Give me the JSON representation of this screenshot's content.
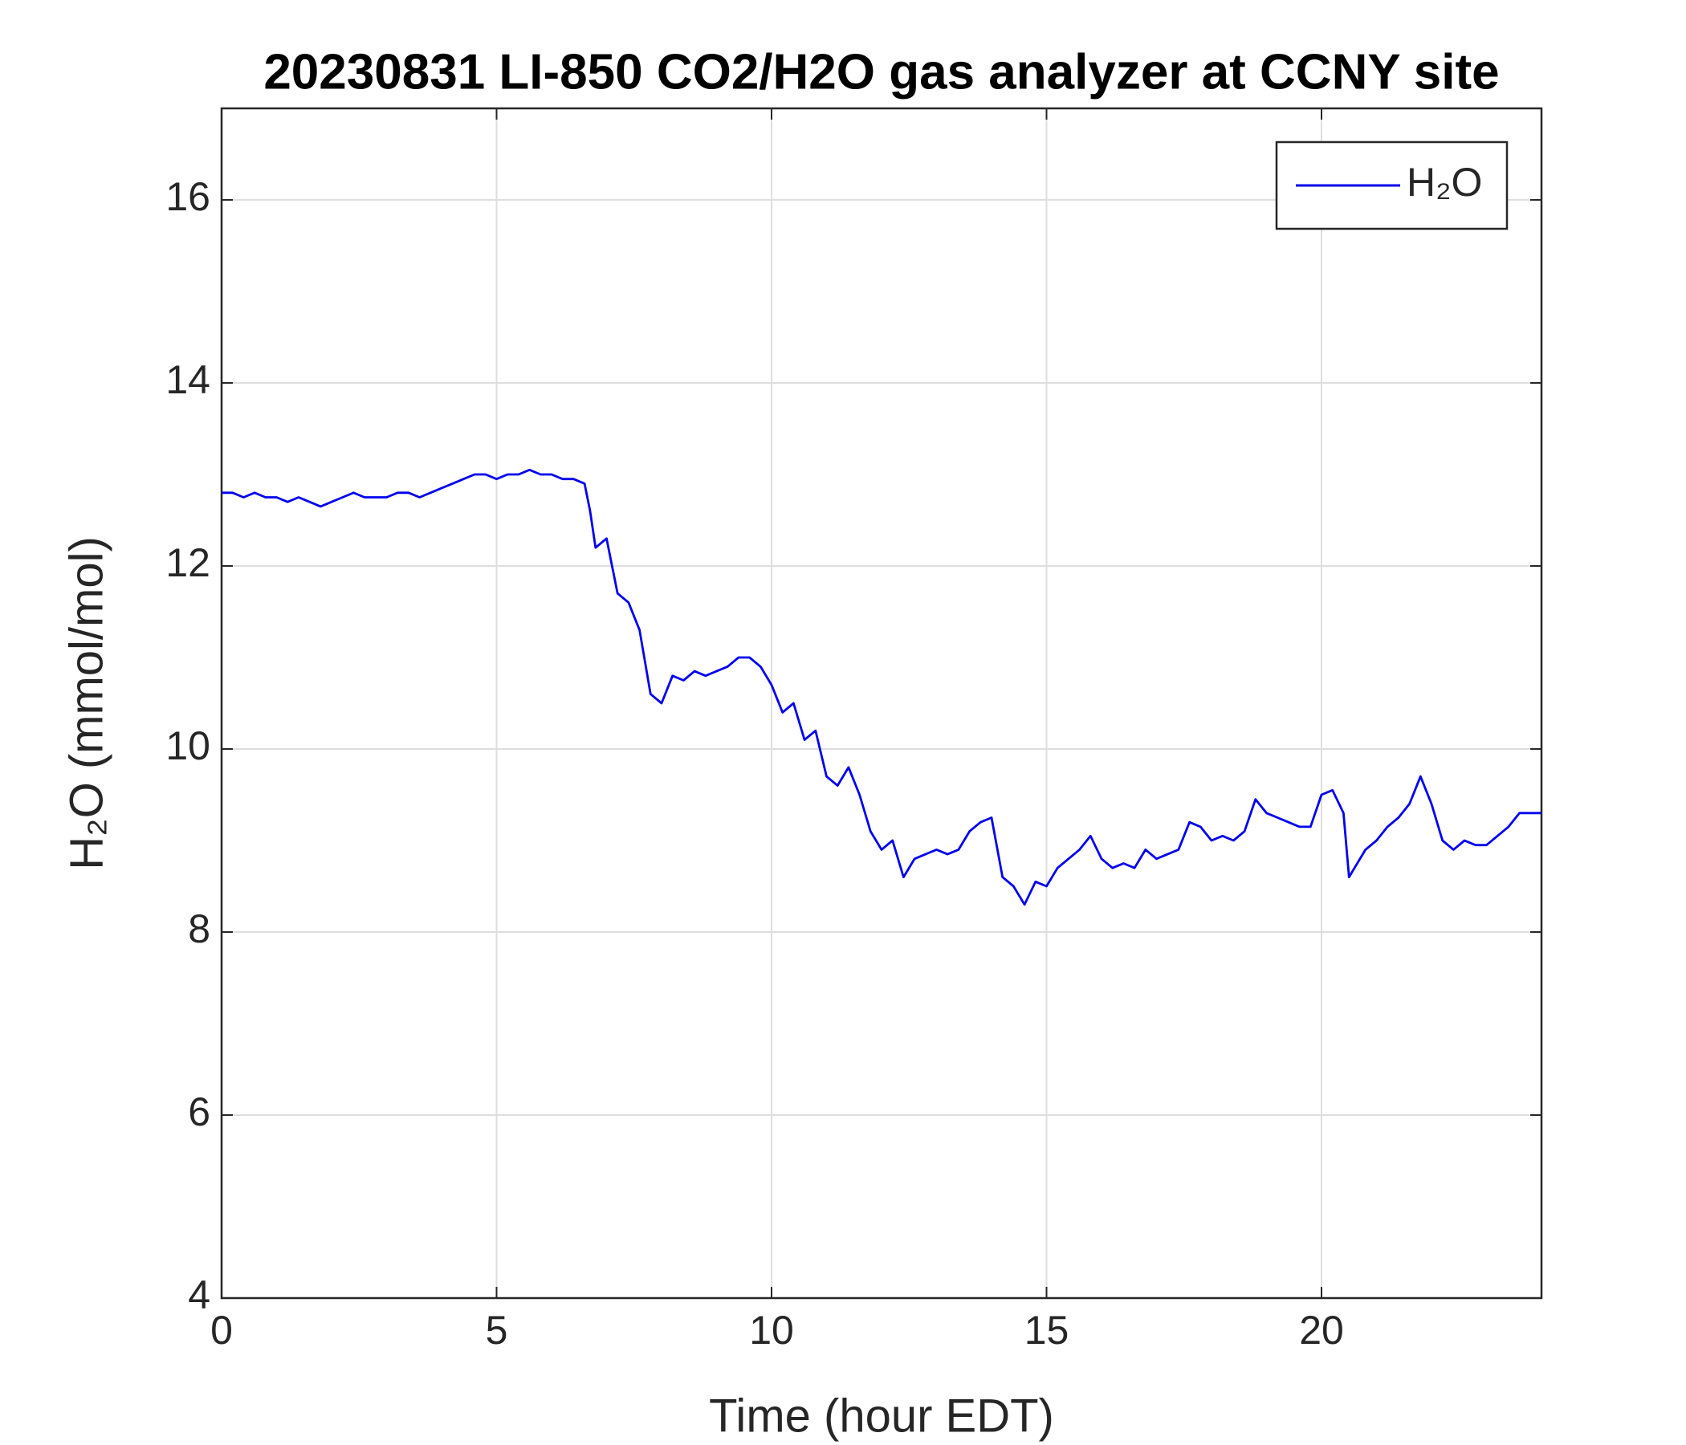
{
  "chart_data": {
    "type": "line",
    "title": "20230831 LI-850 CO2/H2O gas analyzer at CCNY site",
    "x_label": "Time (hour EDT)",
    "y_label": "H₂O (mmol/mol)",
    "x": [
      0,
      0.2,
      0.4,
      0.6,
      0.8,
      1.0,
      1.2,
      1.4,
      1.6,
      1.8,
      2.0,
      2.2,
      2.4,
      2.6,
      2.8,
      3.0,
      3.2,
      3.4,
      3.6,
      3.8,
      4.0,
      4.2,
      4.4,
      4.6,
      4.8,
      5.0,
      5.2,
      5.4,
      5.6,
      5.8,
      6.0,
      6.2,
      6.4,
      6.6,
      6.7,
      6.8,
      7.0,
      7.2,
      7.4,
      7.6,
      7.8,
      8.0,
      8.2,
      8.4,
      8.6,
      8.8,
      9.0,
      9.2,
      9.4,
      9.6,
      9.8,
      10.0,
      10.2,
      10.4,
      10.6,
      10.8,
      11.0,
      11.2,
      11.4,
      11.6,
      11.8,
      12.0,
      12.2,
      12.4,
      12.6,
      12.8,
      13.0,
      13.2,
      13.4,
      13.6,
      13.8,
      14.0,
      14.2,
      14.4,
      14.6,
      14.8,
      15.0,
      15.2,
      15.4,
      15.6,
      15.8,
      16.0,
      16.2,
      16.4,
      16.6,
      16.8,
      17.0,
      17.2,
      17.4,
      17.6,
      17.8,
      18.0,
      18.2,
      18.4,
      18.6,
      18.8,
      19.0,
      19.2,
      19.4,
      19.6,
      19.8,
      20.0,
      20.2,
      20.4,
      20.5,
      20.6,
      20.8,
      21.0,
      21.2,
      21.4,
      21.6,
      21.8,
      22.0,
      22.2,
      22.4,
      22.6,
      22.8,
      23.0,
      23.2,
      23.4,
      23.6,
      23.8,
      24.0
    ],
    "series": [
      {
        "name": "H₂O",
        "color": "#0000ee",
        "values": [
          12.8,
          12.8,
          12.75,
          12.8,
          12.75,
          12.75,
          12.7,
          12.75,
          12.7,
          12.65,
          12.7,
          12.75,
          12.8,
          12.75,
          12.75,
          12.75,
          12.8,
          12.8,
          12.75,
          12.8,
          12.85,
          12.9,
          12.95,
          13.0,
          13.0,
          12.95,
          13.0,
          13.0,
          13.05,
          13.0,
          13.0,
          12.95,
          12.95,
          12.9,
          12.6,
          12.2,
          12.3,
          11.7,
          11.6,
          11.3,
          10.6,
          10.5,
          10.8,
          10.75,
          10.85,
          10.8,
          10.85,
          10.9,
          11.0,
          11.0,
          10.9,
          10.7,
          10.4,
          10.5,
          10.1,
          10.2,
          9.7,
          9.6,
          9.8,
          9.5,
          9.1,
          8.9,
          9.0,
          8.6,
          8.8,
          8.85,
          8.9,
          8.85,
          8.9,
          9.1,
          9.2,
          9.25,
          8.6,
          8.5,
          8.3,
          8.55,
          8.5,
          8.7,
          8.8,
          8.9,
          9.05,
          8.8,
          8.7,
          8.75,
          8.7,
          8.9,
          8.8,
          8.85,
          8.9,
          9.2,
          9.15,
          9.0,
          9.05,
          9.0,
          9.1,
          9.45,
          9.3,
          9.25,
          9.2,
          9.15,
          9.15,
          9.5,
          9.55,
          9.3,
          8.6,
          8.7,
          8.9,
          9.0,
          9.15,
          9.25,
          9.4,
          9.7,
          9.4,
          9.0,
          8.9,
          9.0,
          8.95,
          8.95,
          9.05,
          9.15,
          9.3,
          9.3,
          9.3
        ]
      }
    ],
    "xlim": [
      0,
      24
    ],
    "xticks": [
      0,
      5,
      10,
      15,
      20
    ],
    "ylim": [
      4,
      17
    ],
    "yticks": [
      4,
      6,
      8,
      10,
      12,
      14,
      16
    ],
    "grid": true,
    "legend": "upper right"
  }
}
